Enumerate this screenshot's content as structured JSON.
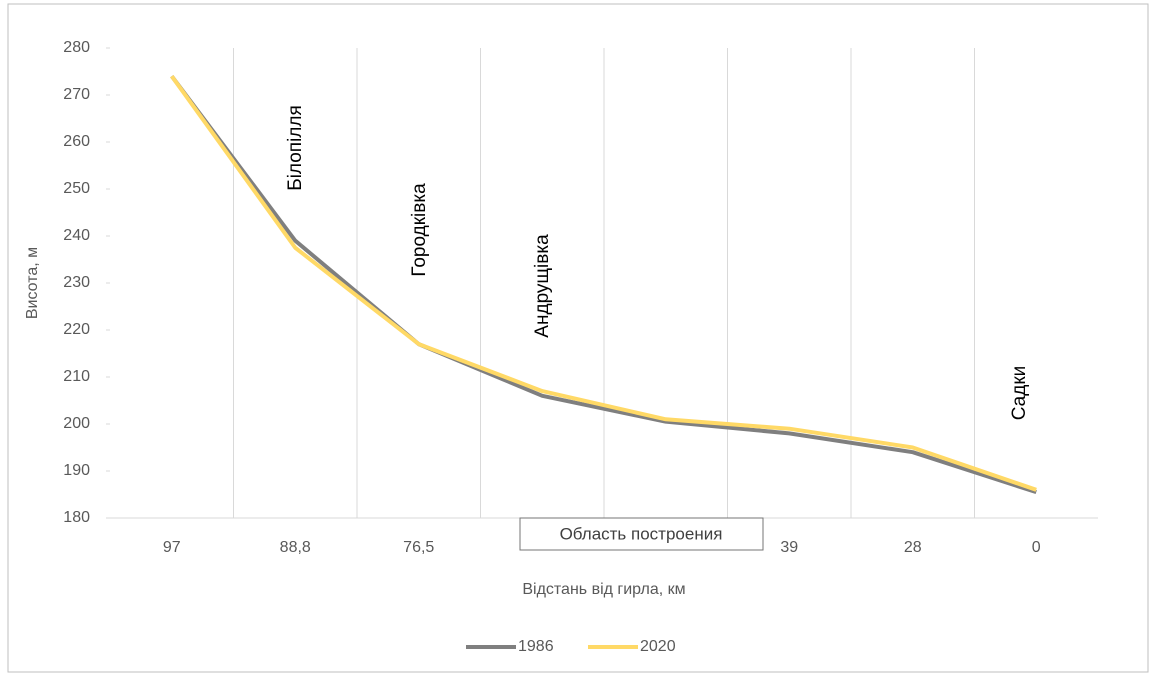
{
  "chart_data": {
    "type": "line",
    "categories": [
      "97",
      "88,8",
      "76,5",
      null,
      null,
      "39",
      "28",
      "0"
    ],
    "series": [
      {
        "name": "1986",
        "color": "#7f7f7f",
        "values": [
          274,
          239,
          217,
          206,
          200.5,
          198,
          194,
          185.5
        ]
      },
      {
        "name": "2020",
        "color": "#ffd966",
        "values": [
          274,
          237.5,
          217,
          207,
          201,
          199,
          195,
          186
        ]
      }
    ],
    "ylim": [
      180,
      280
    ],
    "yticks": [
      180,
      190,
      200,
      210,
      220,
      230,
      240,
      250,
      260,
      270,
      280
    ],
    "ylabel": "Висота, м",
    "xlabel": "Відстань від гирла, км",
    "annotations": [
      "Білопілля",
      "Городківка",
      "Андрущівка",
      "Садки"
    ],
    "tooltip": "Область построения",
    "legend": "bottom"
  }
}
